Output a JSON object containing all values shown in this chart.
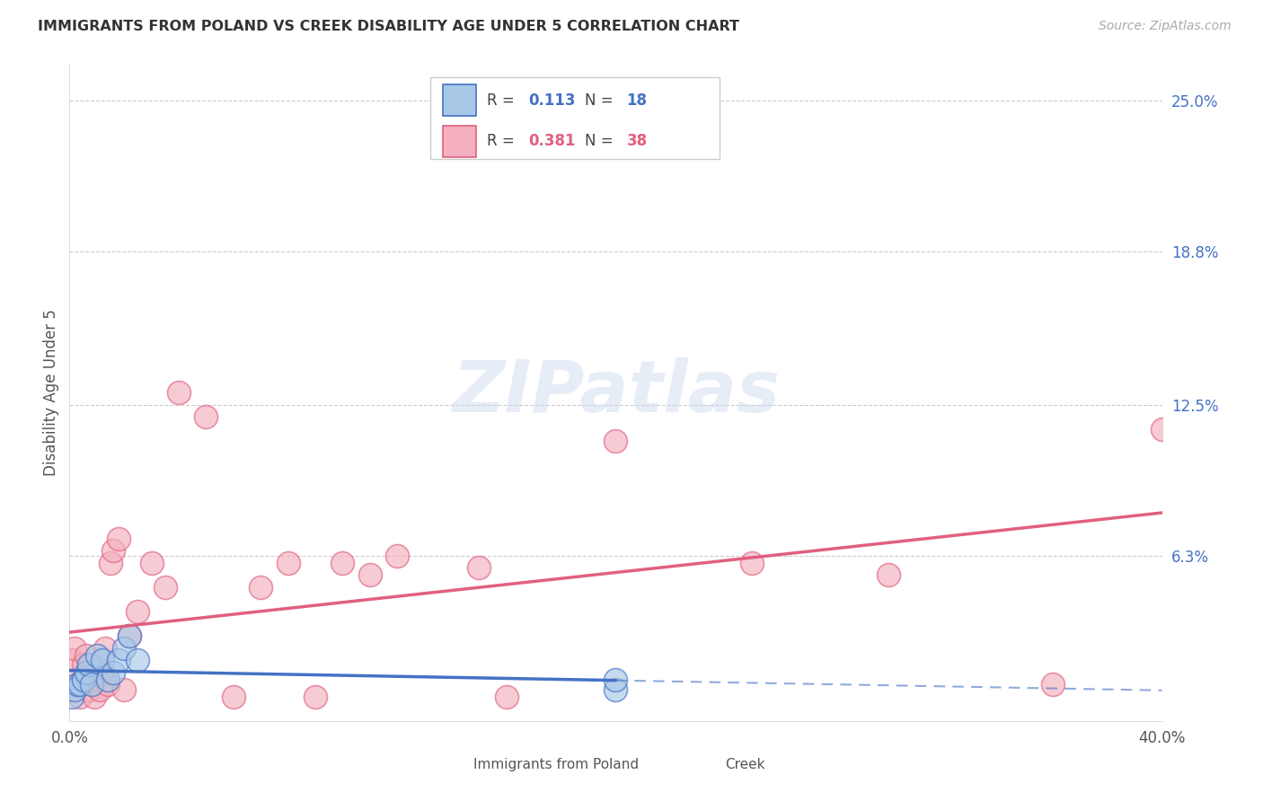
{
  "title": "IMMIGRANTS FROM POLAND VS CREEK DISABILITY AGE UNDER 5 CORRELATION CHART",
  "source": "Source: ZipAtlas.com",
  "ylabel": "Disability Age Under 5",
  "right_yticklabels": [
    "6.3%",
    "12.5%",
    "18.8%",
    "25.0%"
  ],
  "right_ytick_vals": [
    0.063,
    0.125,
    0.188,
    0.25
  ],
  "poland_color": "#a8c8e8",
  "creek_color": "#f4b0be",
  "poland_edge_color": "#4472c4",
  "creek_edge_color": "#e06080",
  "poland_line_color": "#4472c4",
  "creek_line_color": "#e06080",
  "watermark": "ZIPatlas",
  "poland_x": [
    0.001,
    0.002,
    0.003,
    0.004,
    0.005,
    0.006,
    0.007,
    0.008,
    0.01,
    0.012,
    0.014,
    0.016,
    0.018,
    0.02,
    0.022,
    0.025,
    0.2,
    0.2
  ],
  "poland_y": [
    0.005,
    0.008,
    0.01,
    0.01,
    0.012,
    0.015,
    0.018,
    0.01,
    0.022,
    0.02,
    0.012,
    0.015,
    0.02,
    0.025,
    0.03,
    0.02,
    0.008,
    0.012
  ],
  "creek_x": [
    0.001,
    0.002,
    0.003,
    0.004,
    0.005,
    0.006,
    0.007,
    0.008,
    0.009,
    0.01,
    0.011,
    0.012,
    0.013,
    0.014,
    0.015,
    0.016,
    0.018,
    0.02,
    0.022,
    0.025,
    0.03,
    0.035,
    0.04,
    0.05,
    0.06,
    0.07,
    0.08,
    0.09,
    0.1,
    0.11,
    0.12,
    0.15,
    0.16,
    0.2,
    0.25,
    0.3,
    0.36,
    0.4
  ],
  "creek_y": [
    0.02,
    0.025,
    0.01,
    0.005,
    0.018,
    0.022,
    0.008,
    0.012,
    0.005,
    0.015,
    0.008,
    0.015,
    0.025,
    0.01,
    0.06,
    0.065,
    0.07,
    0.008,
    0.03,
    0.04,
    0.06,
    0.05,
    0.13,
    0.12,
    0.005,
    0.05,
    0.06,
    0.005,
    0.06,
    0.055,
    0.063,
    0.058,
    0.005,
    0.11,
    0.06,
    0.055,
    0.01,
    0.115
  ],
  "xlim": [
    0.0,
    0.4
  ],
  "ylim": [
    -0.005,
    0.265
  ],
  "poland_R": "0.113",
  "poland_N": "18",
  "creek_R": "0.381",
  "creek_N": "38",
  "R_color": "#333333",
  "poland_val_color": "#4472c4",
  "creek_val_color": "#e06080"
}
